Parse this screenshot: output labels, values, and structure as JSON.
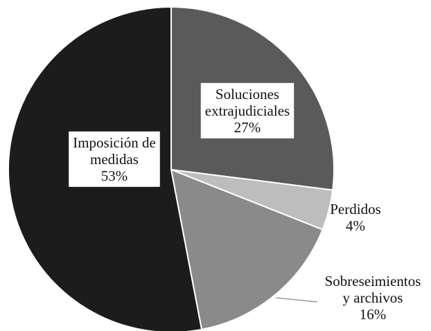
{
  "chart_data": {
    "type": "pie",
    "categories": [
      "Soluciones extrajudiciales",
      "Perdidos",
      "Sobreseimientos y archivos",
      "Imposición de medidas"
    ],
    "values": [
      27,
      4,
      16,
      53
    ],
    "value_labels": [
      "27%",
      "4%",
      "16%",
      "53%"
    ],
    "colors": [
      "#5a5a5a",
      "#bdbdbd",
      "#8a8a8a",
      "#1c1c1c"
    ]
  }
}
